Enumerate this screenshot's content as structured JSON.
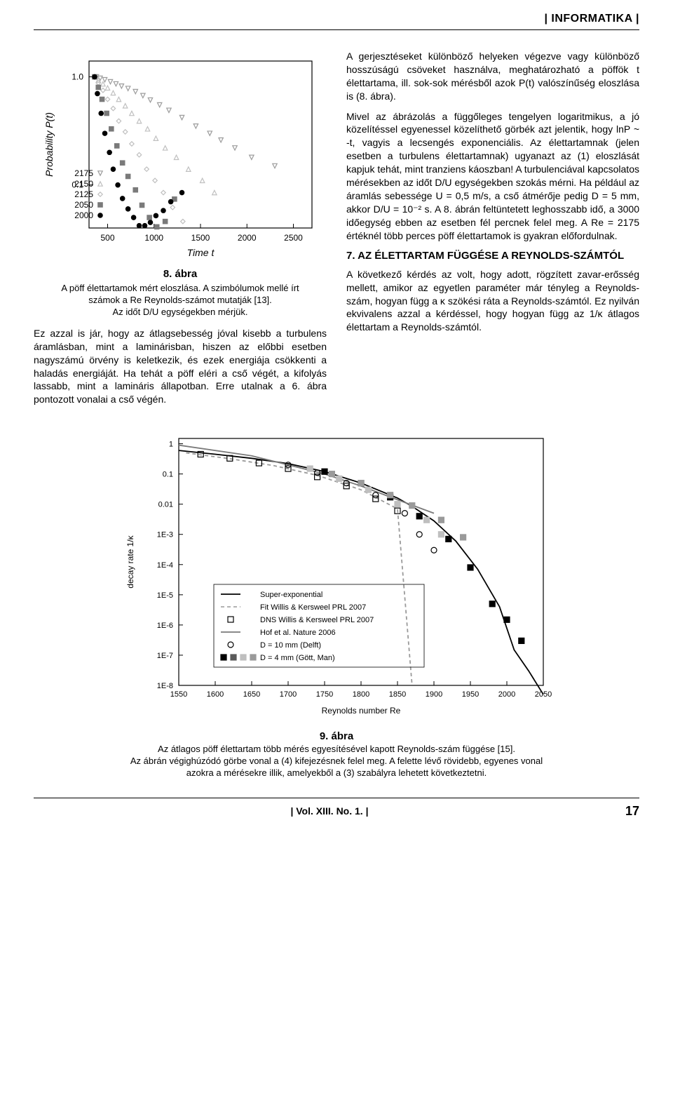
{
  "header": {
    "section": "| INFORMATIKA |"
  },
  "fig8": {
    "type": "scatter-semilogy",
    "ylabel": "Probability P(t)",
    "ylabel_style": "italic",
    "xlabel": "Time t",
    "xlabel_style": "italic",
    "xlim": [
      300,
      2700
    ],
    "xticks": [
      500,
      1000,
      1500,
      2000,
      2500
    ],
    "ylim": [
      0.04,
      1.4
    ],
    "yticks": [
      0.1,
      1.0
    ],
    "ytick_labels": [
      "0.1",
      "1.0"
    ],
    "series": [
      {
        "name": "2175",
        "marker": "triangle-down",
        "color": "#9c9c9c",
        "x": [
          380,
          420,
          470,
          530,
          590,
          650,
          720,
          800,
          880,
          960,
          1060,
          1160,
          1300,
          1450,
          1600,
          1720,
          1870,
          2050,
          2300
        ],
        "y": [
          1.0,
          0.97,
          0.94,
          0.9,
          0.86,
          0.82,
          0.78,
          0.73,
          0.67,
          0.61,
          0.55,
          0.49,
          0.42,
          0.35,
          0.3,
          0.26,
          0.22,
          0.18,
          0.15
        ]
      },
      {
        "name": "2150",
        "marker": "triangle-up",
        "color": "#c0c0c0",
        "x": [
          360,
          400,
          450,
          500,
          560,
          620,
          690,
          760,
          840,
          930,
          1020,
          1120,
          1240,
          1370,
          1520,
          1650
        ],
        "y": [
          1.0,
          0.93,
          0.86,
          0.79,
          0.71,
          0.62,
          0.54,
          0.46,
          0.39,
          0.33,
          0.27,
          0.22,
          0.18,
          0.14,
          0.11,
          0.085
        ]
      },
      {
        "name": "2125",
        "marker": "diamond",
        "color": "#bfbfbf",
        "x": [
          360,
          400,
          450,
          500,
          560,
          620,
          690,
          760,
          840,
          920,
          1010,
          1100,
          1200,
          1310
        ],
        "y": [
          1.0,
          0.88,
          0.75,
          0.62,
          0.51,
          0.39,
          0.31,
          0.24,
          0.19,
          0.14,
          0.11,
          0.085,
          0.062,
          0.046
        ]
      },
      {
        "name": "2050",
        "marker": "square",
        "color": "#7a7a7a",
        "x": [
          360,
          400,
          440,
          490,
          540,
          600,
          660,
          720,
          800,
          870,
          950,
          1030,
          1120,
          1220
        ],
        "y": [
          1.0,
          0.8,
          0.62,
          0.46,
          0.33,
          0.23,
          0.16,
          0.12,
          0.09,
          0.065,
          0.05,
          0.041,
          0.046,
          0.074
        ]
      },
      {
        "name": "2000",
        "marker": "circle",
        "color": "#000000",
        "x": [
          360,
          390,
          430,
          470,
          520,
          560,
          610,
          660,
          720,
          780,
          840,
          900,
          960,
          1020,
          1100,
          1180,
          1300
        ],
        "y": [
          1.0,
          0.7,
          0.46,
          0.3,
          0.2,
          0.14,
          0.1,
          0.075,
          0.06,
          0.05,
          0.042,
          0.042,
          0.045,
          0.052,
          0.058,
          0.07,
          0.085
        ]
      }
    ],
    "legend": {
      "items": [
        {
          "label": "2175",
          "marker": "triangle-down",
          "color": "#9c9c9c"
        },
        {
          "label": "2150",
          "marker": "triangle-up",
          "color": "#c0c0c0"
        },
        {
          "label": "2125",
          "marker": "diamond",
          "color": "#bfbfbf"
        },
        {
          "label": "2050",
          "marker": "square",
          "color": "#7a7a7a"
        },
        {
          "label": "2000",
          "marker": "circle",
          "color": "#000000"
        }
      ],
      "position": "lower-left"
    },
    "tick_fontsize": 12,
    "label_fontsize": 14,
    "background_color": "#ffffff",
    "title": "8. ábra",
    "caption_line1": "A pöff élettartamok mért eloszlása. A szimbólumok mellé írt",
    "caption_line2": "számok a Re Reynolds-számot mutatják [13].",
    "caption_line3": "Az időt D/U egységekben mérjük."
  },
  "left_col": {
    "para1": "Ez azzal is jár, hogy az átlagsebesség jóval kisebb a turbulens áramlásban, mint a laminárisban, hiszen az előbbi esetben nagyszámú örvény is keletkezik, és ezek energiája csökkenti a haladás energiáját. Ha tehát a pöff eléri a cső végét, a kifolyás lassabb, mint a lamináris állapotban. Erre utalnak a 6. ábra pontozott vonalai a cső végén."
  },
  "right_col": {
    "para1": "A gerjesztéseket különböző helyeken végezve vagy különböző hosszúságú csöveket használva, meghatározható a pöffök t élettartama, ill. sok-sok mérésből azok P(t) valószínűség eloszlása is (8. ábra).",
    "para2": "Mivel az ábrázolás a függőleges tengelyen logaritmikus, a jó közelítéssel egyenessel közelíthető görbék azt jelentik, hogy lnP ~ -t, vagyis a lecsengés exponenciális. Az élettartamnak (jelen esetben a turbulens élettartamnak) ugyanazt az (1) eloszlását kapjuk tehát, mint tranziens káoszban! A turbulenciával kapcsolatos mérésekben az időt D/U egységekben szokás mérni. Ha például az áramlás sebessége U = 0,5 m/s, a cső átmérője pedig D = 5 mm, akkor D/U = 10⁻² s. A 8. ábrán feltüntetett leghosszabb idő, a 3000 időegység ebben az esetben fél percnek felel meg. A Re = 2175 értéknél több perces pöff élettartamok is gyakran előfordulnak.",
    "sec_title": "7. AZ ÉLETTARTAM FÜGGÉSE A REYNOLDS-SZÁMTÓL",
    "para3": "A következő kérdés az volt, hogy adott, rögzített zavar-erősség mellett, amikor az egyetlen paraméter már tényleg a Reynolds-szám, hogyan függ a κ szökési ráta a Reynolds-számtól. Ez nyilván ekvivalens azzal a kérdéssel, hogy hogyan függ az 1/κ átlagos élettartam a Reynolds-számtól."
  },
  "fig9": {
    "type": "semilogy",
    "ylabel": "decay rate 1/κ",
    "xlabel": "Reynolds number Re",
    "xlim": [
      1550,
      2050
    ],
    "xticks": [
      1550,
      1600,
      1650,
      1700,
      1750,
      1800,
      1850,
      1900,
      1950,
      2000,
      2050
    ],
    "ylim": [
      1e-08,
      1.5
    ],
    "yticks": [
      1e-08,
      1e-07,
      1e-06,
      1e-05,
      0.0001,
      0.001,
      0.01,
      0.1,
      1
    ],
    "ytick_labels": [
      "1E-8",
      "1E-7",
      "1E-6",
      "1E-5",
      "1E-4",
      "1E-3",
      "0.01",
      "0.1",
      "1"
    ],
    "axis_color": "#000000",
    "tick_fontsize": 11,
    "label_fontsize": 12,
    "background_color": "#ffffff",
    "series": [
      {
        "name": "Super-exponential",
        "style": "line",
        "dash": "solid",
        "color": "#000000",
        "x": [
          1550,
          1600,
          1650,
          1700,
          1750,
          1800,
          1850,
          1870,
          1900,
          1930,
          1960,
          1990,
          2010,
          2030,
          2050
        ],
        "y": [
          0.6,
          0.45,
          0.33,
          0.22,
          0.12,
          0.05,
          0.016,
          0.0085,
          0.0028,
          0.0006,
          7e-05,
          4e-06,
          1.5e-07,
          3e-08,
          5e-09
        ]
      },
      {
        "name": "Fit Willis & Kersweel PRL 2007",
        "style": "line",
        "dash": "dashed",
        "color": "#9a9a9a",
        "x": [
          1560,
          1620,
          1680,
          1740,
          1800,
          1850,
          1870
        ],
        "y": [
          0.5,
          0.32,
          0.19,
          0.09,
          0.03,
          0.007,
          1e-08
        ]
      },
      {
        "name": "DNS Willis & Kersweel PRL 2007",
        "style": "markers",
        "marker": "square-open",
        "color": "#000000",
        "x": [
          1580,
          1620,
          1660,
          1700,
          1740,
          1780,
          1820,
          1850
        ],
        "y": [
          0.45,
          0.33,
          0.23,
          0.15,
          0.08,
          0.04,
          0.015,
          0.006
        ]
      },
      {
        "name": "Hof et al. Nature 2006",
        "style": "line",
        "dash": "solid",
        "color": "#7a7a7a",
        "x": [
          1550,
          1650,
          1750,
          1800,
          1850,
          1900
        ],
        "y": [
          0.9,
          0.4,
          0.1,
          0.04,
          0.014,
          0.005
        ]
      },
      {
        "name": "D = 10 mm (Delft)",
        "style": "markers",
        "marker": "circle-open",
        "color": "#000000",
        "x": [
          1700,
          1740,
          1780,
          1820,
          1860,
          1880,
          1900
        ],
        "y": [
          0.2,
          0.11,
          0.05,
          0.02,
          0.005,
          0.001,
          0.0003
        ]
      },
      {
        "name": "D = 4 mm (Gött, Man)",
        "style": "markers",
        "marker": "square",
        "color": "#000000",
        "x": [
          1750,
          1800,
          1840,
          1880,
          1920,
          1950,
          1980,
          2000,
          2020
        ],
        "y": [
          0.12,
          0.05,
          0.017,
          0.004,
          0.0007,
          8e-05,
          5e-06,
          1.5e-06,
          3e-07
        ]
      },
      {
        "name": "extra-gray-1",
        "style": "markers",
        "marker": "square",
        "color": "#bfbfbf",
        "x": [
          1730,
          1770,
          1810,
          1850,
          1890,
          1910
        ],
        "y": [
          0.15,
          0.07,
          0.03,
          0.01,
          0.003,
          0.001
        ]
      },
      {
        "name": "extra-gray-2",
        "style": "markers",
        "marker": "square",
        "color": "#9a9a9a",
        "x": [
          1760,
          1800,
          1840,
          1870,
          1910,
          1940
        ],
        "y": [
          0.1,
          0.05,
          0.02,
          0.009,
          0.003,
          0.0008
        ]
      }
    ],
    "legend": {
      "items": [
        {
          "label": "Super-exponential",
          "sample": "line-solid"
        },
        {
          "label": "Fit Willis & Kersweel PRL 2007",
          "sample": "line-dashed"
        },
        {
          "label": "DNS Willis & Kersweel PRL 2007",
          "sample": "square-open"
        },
        {
          "label": "Hof et al. Nature 2006",
          "sample": "line-gray"
        },
        {
          "label": "D = 10 mm (Delft)",
          "sample": "circle-open"
        },
        {
          "label": "D = 4 mm (Gött, Man)",
          "sample": "squares-row"
        }
      ]
    },
    "title": "9. ábra",
    "caption_line1": "Az átlagos pöff élettartam több mérés egyesítésével kapott Reynolds-szám függése [15].",
    "caption_line2": "Az ábrán végighúzódó görbe vonal a (4) kifejezésnek felel meg. A felette lévő rövidebb, egyenes vonal",
    "caption_line3": "azokra a mérésekre illik, amelyekből a (3) szabályra lehetett következtetni."
  },
  "footer": {
    "left": "",
    "center": "| Vol. XIII. No. 1. |",
    "page": "17"
  }
}
